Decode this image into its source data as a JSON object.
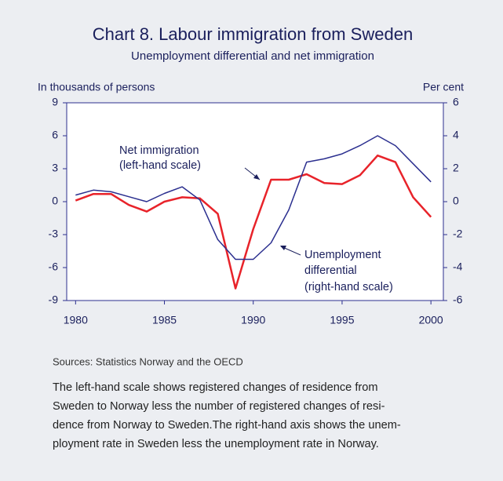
{
  "chart_data": {
    "type": "line",
    "title": "Chart 8. Labour immigration from Sweden",
    "subtitle": "Unemployment differential and net immigration",
    "y_label": "In thousands of persons",
    "y2_label": "Per cent",
    "x": [
      1980,
      1981,
      1982,
      1983,
      1984,
      1985,
      1986,
      1987,
      1988,
      1989,
      1990,
      1991,
      1992,
      1993,
      1994,
      1995,
      1996,
      1997,
      1998,
      1999,
      2000
    ],
    "series": [
      {
        "name": "Net immigration (left-hand scale)",
        "color": "#e8232a",
        "axis": "y",
        "values": [
          0.1,
          0.7,
          0.7,
          -0.3,
          -0.9,
          0.0,
          0.4,
          0.3,
          -1.1,
          -7.9,
          -2.5,
          2.0,
          2.0,
          2.5,
          1.7,
          1.6,
          2.4,
          4.2,
          3.6,
          0.4,
          -1.4
        ]
      },
      {
        "name": "Unemployment differential (right-hand scale)",
        "color": "#2b2f8f",
        "axis": "y2",
        "values": [
          0.4,
          0.7,
          0.6,
          0.3,
          0.0,
          0.5,
          0.9,
          0.1,
          -2.3,
          -3.5,
          -3.5,
          -2.5,
          -0.5,
          2.4,
          2.6,
          2.9,
          3.4,
          4.0,
          3.4,
          2.3,
          1.2
        ]
      }
    ],
    "annotations": [
      {
        "lines": [
          "Net immigration",
          "(left-hand scale)"
        ]
      },
      {
        "lines": [
          "Unemployment",
          "differential",
          "(right-hand scale)"
        ]
      }
    ],
    "xlim": [
      1979.5,
      2000.7
    ],
    "xticks": [
      1980,
      1985,
      1990,
      1995,
      2000
    ],
    "ylim": [
      -9,
      9
    ],
    "yticks": [
      -9,
      -6,
      -3,
      0,
      3,
      6,
      9
    ],
    "y2lim": [
      -6,
      6
    ],
    "y2ticks": [
      -6,
      -4,
      -2,
      0,
      2,
      4,
      6
    ],
    "source": "Sources: Statistics Norway and the OECD",
    "note_lines": [
      "The left-hand scale shows registered changes of residence from",
      "Sweden to Norway less the number of registered changes of resi-",
      "dence from Norway to Sweden.The right-hand axis shows the unem-",
      "ployment rate in Sweden less the unemployment rate in Norway."
    ]
  }
}
